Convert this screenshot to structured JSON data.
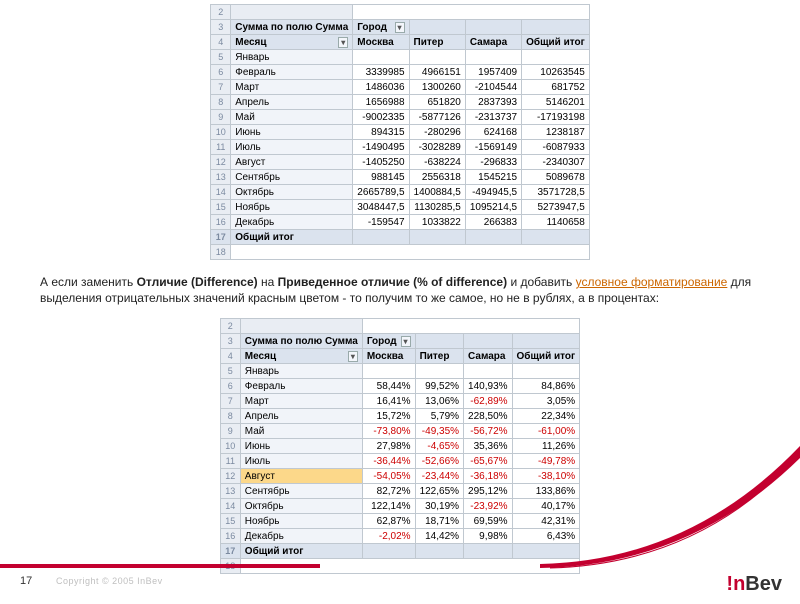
{
  "table1": {
    "header_sum": "Сумма по полю Сумма",
    "header_city": "Город",
    "header_month": "Месяц",
    "col_headers": [
      "Москва",
      "Питер",
      "Самара",
      "Общий итог"
    ],
    "row_start": 2,
    "rows": [
      {
        "label": "Январь",
        "vals": [
          "",
          "",
          "",
          ""
        ]
      },
      {
        "label": "Февраль",
        "vals": [
          "3339985",
          "4966151",
          "1957409",
          "10263545"
        ]
      },
      {
        "label": "Март",
        "vals": [
          "1486036",
          "1300260",
          "-2104544",
          "681752"
        ]
      },
      {
        "label": "Апрель",
        "vals": [
          "1656988",
          "651820",
          "2837393",
          "5146201"
        ]
      },
      {
        "label": "Май",
        "vals": [
          "-9002335",
          "-5877126",
          "-2313737",
          "-17193198"
        ]
      },
      {
        "label": "Июнь",
        "vals": [
          "894315",
          "-280296",
          "624168",
          "1238187"
        ]
      },
      {
        "label": "Июль",
        "vals": [
          "-1490495",
          "-3028289",
          "-1569149",
          "-6087933"
        ]
      },
      {
        "label": "Август",
        "vals": [
          "-1405250",
          "-638224",
          "-296833",
          "-2340307"
        ]
      },
      {
        "label": "Сентябрь",
        "vals": [
          "988145",
          "2556318",
          "1545215",
          "5089678"
        ]
      },
      {
        "label": "Октябрь",
        "vals": [
          "2665789,5",
          "1400884,5",
          "-494945,5",
          "3571728,5"
        ]
      },
      {
        "label": "Ноябрь",
        "vals": [
          "3048447,5",
          "1130285,5",
          "1095214,5",
          "5273947,5"
        ]
      },
      {
        "label": "Декабрь",
        "vals": [
          "-159547",
          "1033822",
          "266383",
          "1140658"
        ]
      }
    ],
    "total_label": "Общий итог"
  },
  "paragraph": {
    "prefix": "А если заменить ",
    "b1": "Отличие (Difference)",
    "mid1": " на ",
    "b2": "Приведенное отличие (% of difference)",
    "mid2": " и добавить ",
    "link": "условное форматирование",
    "suffix": " для выделения отрицательных значений красным цветом - то получим то же самое, но не в рублях, а в процентах:"
  },
  "table2": {
    "header_sum": "Сумма по полю Сумма",
    "header_city": "Город",
    "header_month": "Месяц",
    "col_headers": [
      "Москва",
      "Питер",
      "Самара",
      "Общий итог"
    ],
    "row_start": 2,
    "rows": [
      {
        "label": "Январь",
        "vals": [
          "",
          "",
          "",
          ""
        ]
      },
      {
        "label": "Февраль",
        "vals": [
          "58,44%",
          "99,52%",
          "140,93%",
          "84,86%"
        ]
      },
      {
        "label": "Март",
        "vals": [
          "16,41%",
          "13,06%",
          "-62,89%",
          "3,05%"
        ]
      },
      {
        "label": "Апрель",
        "vals": [
          "15,72%",
          "5,79%",
          "228,50%",
          "22,34%"
        ]
      },
      {
        "label": "Май",
        "vals": [
          "-73,80%",
          "-49,35%",
          "-56,72%",
          "-61,00%"
        ]
      },
      {
        "label": "Июнь",
        "vals": [
          "27,98%",
          "-4,65%",
          "35,36%",
          "11,26%"
        ]
      },
      {
        "label": "Июль",
        "vals": [
          "-36,44%",
          "-52,66%",
          "-65,67%",
          "-49,78%"
        ]
      },
      {
        "label": "Август",
        "vals": [
          "-54,05%",
          "-23,44%",
          "-36,18%",
          "-38,10%"
        ],
        "selected": true
      },
      {
        "label": "Сентябрь",
        "vals": [
          "82,72%",
          "122,65%",
          "295,12%",
          "133,86%"
        ]
      },
      {
        "label": "Октябрь",
        "vals": [
          "122,14%",
          "30,19%",
          "-23,92%",
          "40,17%"
        ]
      },
      {
        "label": "Ноябрь",
        "vals": [
          "62,87%",
          "18,71%",
          "69,59%",
          "42,31%"
        ]
      },
      {
        "label": "Декабрь",
        "vals": [
          "-2,02%",
          "14,42%",
          "9,98%",
          "6,43%"
        ]
      }
    ],
    "total_label": "Общий итог"
  },
  "footer": {
    "page": "17",
    "copyright": "Copyright © 2005 InBev",
    "logo_i": "!",
    "logo_n": "n",
    "logo_bev": "Bev"
  },
  "colors": {
    "brand_red": "#c3002f",
    "neg_text": "#cc0000"
  }
}
